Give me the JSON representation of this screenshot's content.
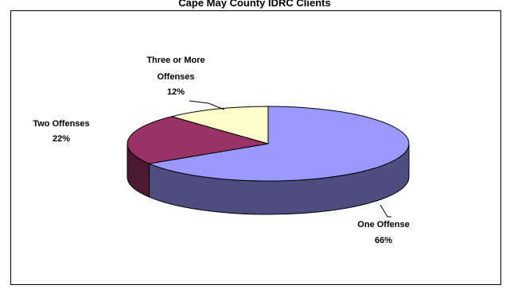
{
  "chart_data": {
    "type": "pie",
    "title": "Cape May County IDRC Clients",
    "slices": [
      {
        "label": "One Offense",
        "value": 66,
        "value_label": "66%",
        "color": "#9999ff",
        "side_color": "#4d4d80"
      },
      {
        "label": "Two Offenses",
        "value": 22,
        "value_label": "22%",
        "color": "#993366",
        "side_color": "#4d1a33"
      },
      {
        "label": "Three or More Offenses",
        "label_lines": [
          "Three or More",
          "Offenses"
        ],
        "value": 12,
        "value_label": "12%",
        "color": "#ffffcc",
        "side_color": "#80805a"
      }
    ],
    "style": "3d-pie",
    "legend": "none"
  }
}
